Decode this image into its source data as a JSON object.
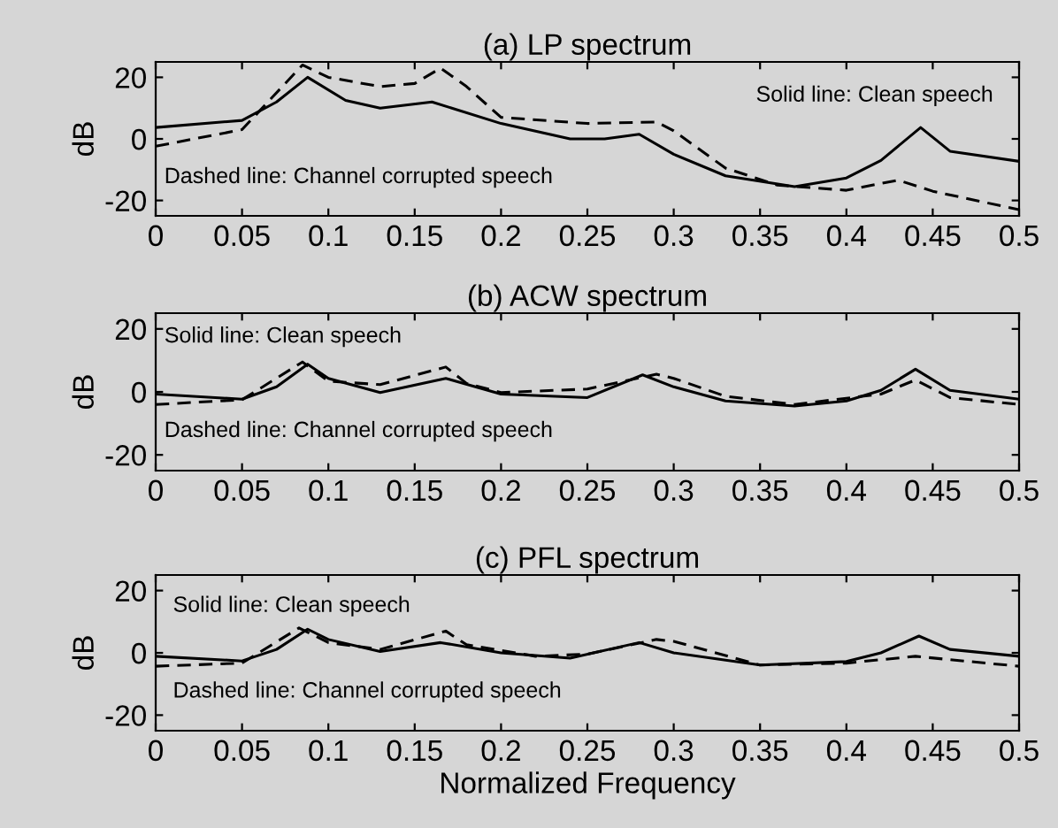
{
  "chart_data": [
    {
      "type": "line",
      "title": "(a) LP spectrum",
      "ylabel": "dB",
      "xlim": [
        0,
        0.5
      ],
      "ylim": [
        -25,
        25
      ],
      "xticks": [
        0,
        0.05,
        0.1,
        0.15,
        0.2,
        0.25,
        0.3,
        0.35,
        0.4,
        0.45,
        0.5
      ],
      "yticks": [
        -20,
        0,
        20
      ],
      "grid": false,
      "legend": false,
      "annotations": [
        "Solid line: Clean speech",
        "Dashed line: Channel corrupted speech"
      ],
      "series": [
        {
          "color": "#000000",
          "line_style": "solid",
          "x": [
            0,
            0.05,
            0.07,
            0.088,
            0.11,
            0.13,
            0.16,
            0.2,
            0.24,
            0.26,
            0.28,
            0.3,
            0.33,
            0.37,
            0.4,
            0.42,
            0.443,
            0.46,
            0.5
          ],
          "values": [
            3.7,
            6,
            12,
            20,
            12.5,
            10,
            12,
            5,
            0,
            0,
            1.5,
            -5,
            -12,
            -15.5,
            -12.7,
            -7,
            3.7,
            -4,
            -7.3
          ]
        },
        {
          "color": "#000000",
          "line_style": "dashed",
          "x": [
            0,
            0.05,
            0.085,
            0.1,
            0.13,
            0.15,
            0.165,
            0.18,
            0.2,
            0.25,
            0.29,
            0.3,
            0.33,
            0.36,
            0.4,
            0.43,
            0.45,
            0.5
          ],
          "values": [
            -2.4,
            3,
            24,
            20,
            17,
            18,
            23,
            17,
            7,
            5,
            5.5,
            2.6,
            -9.5,
            -15,
            -16.7,
            -13.4,
            -17,
            -23
          ]
        }
      ]
    },
    {
      "type": "line",
      "title": "(b) ACW spectrum",
      "ylabel": "dB",
      "xlim": [
        0,
        0.5
      ],
      "ylim": [
        -25,
        25
      ],
      "xticks": [
        0,
        0.05,
        0.1,
        0.15,
        0.2,
        0.25,
        0.3,
        0.35,
        0.4,
        0.45,
        0.5
      ],
      "yticks": [
        -20,
        0,
        20
      ],
      "grid": false,
      "legend": false,
      "annotations": [
        "Solid line: Clean speech",
        "Dashed line: Channel corrupted speech"
      ],
      "series": [
        {
          "color": "#000000",
          "line_style": "solid",
          "x": [
            0,
            0.05,
            0.07,
            0.088,
            0.1,
            0.13,
            0.168,
            0.2,
            0.25,
            0.282,
            0.3,
            0.33,
            0.37,
            0.4,
            0.42,
            0.44,
            0.46,
            0.5
          ],
          "values": [
            -0.7,
            -2.3,
            1.6,
            8.8,
            4.3,
            -0.2,
            4.3,
            -0.7,
            -1.8,
            5.4,
            1.6,
            -2.9,
            -4.5,
            -2.9,
            0.5,
            7.2,
            0.5,
            -2.3
          ]
        },
        {
          "color": "#000000",
          "line_style": "dashed",
          "x": [
            0,
            0.05,
            0.085,
            0.1,
            0.13,
            0.168,
            0.18,
            0.2,
            0.25,
            0.29,
            0.3,
            0.33,
            0.37,
            0.42,
            0.44,
            0.46,
            0.5
          ],
          "values": [
            -4,
            -2.5,
            9.5,
            3.4,
            2.3,
            7.9,
            2.7,
            -0.2,
            0.9,
            5.6,
            4.3,
            -1.4,
            -4,
            -0.7,
            3.8,
            -1.8,
            -4
          ]
        }
      ]
    },
    {
      "type": "line",
      "title": "(c) PFL spectrum",
      "ylabel": "dB",
      "xlabel": "Normalized Frequency",
      "xlim": [
        0,
        0.5
      ],
      "ylim": [
        -25,
        25
      ],
      "xticks": [
        0,
        0.05,
        0.1,
        0.15,
        0.2,
        0.25,
        0.3,
        0.35,
        0.4,
        0.45,
        0.5
      ],
      "yticks": [
        -20,
        0,
        20
      ],
      "grid": false,
      "legend": false,
      "annotations": [
        "Solid line: Clean speech",
        "Dashed line: Channel corrupted speech"
      ],
      "series": [
        {
          "color": "#000000",
          "line_style": "solid",
          "x": [
            0,
            0.05,
            0.07,
            0.088,
            0.1,
            0.13,
            0.165,
            0.2,
            0.24,
            0.28,
            0.3,
            0.35,
            0.4,
            0.42,
            0.442,
            0.46,
            0.5
          ],
          "values": [
            -1.1,
            -2.6,
            1.1,
            7.6,
            4.3,
            0.4,
            3.3,
            0,
            -1.7,
            3.3,
            0,
            -3.9,
            -2.8,
            0,
            5.4,
            1.1,
            -1.1
          ]
        },
        {
          "color": "#000000",
          "line_style": "dashed",
          "x": [
            0,
            0.05,
            0.083,
            0.1,
            0.13,
            0.168,
            0.18,
            0.22,
            0.25,
            0.29,
            0.3,
            0.35,
            0.4,
            0.44,
            0.46,
            0.5
          ],
          "values": [
            -4.3,
            -3.3,
            8,
            3.3,
            1.1,
            7,
            2.6,
            -1.1,
            -0.4,
            4.3,
            3.7,
            -3.9,
            -3.3,
            -1.1,
            -2.2,
            -4.3
          ]
        }
      ]
    }
  ]
}
